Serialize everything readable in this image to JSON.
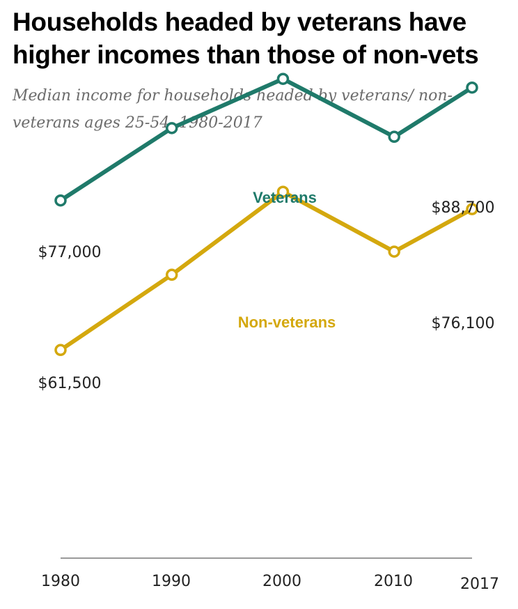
{
  "title": "Households headed by veterans have higher incomes than those of non-vets",
  "subtitle": "Median income for households headed by veterans/ non-veterans ages 25-54, 1980-2017",
  "chart_data": {
    "type": "line",
    "title": "Households headed by veterans have higher incomes than those of non-vets",
    "subtitle": "Median income for households headed by veterans/ non-veterans ages 25-54, 1980-2017",
    "x": [
      1980,
      1990,
      2000,
      2010,
      2017
    ],
    "tick_labels": [
      "1980",
      "1990",
      "2000",
      "2010",
      "2017"
    ],
    "series": [
      {
        "name": "Veterans",
        "color": "#1f7a6a",
        "values": [
          77000,
          84500,
          89600,
          83600,
          88700
        ],
        "labels": [
          {
            "index": 0,
            "text": "$77,000"
          },
          {
            "index": 4,
            "text": "$88,700"
          }
        ]
      },
      {
        "name": "Non-veterans",
        "color": "#d4a80e",
        "values": [
          61500,
          69300,
          77900,
          71700,
          76100
        ],
        "labels": [
          {
            "index": 0,
            "text": "$61,500"
          },
          {
            "index": 4,
            "text": "$76,100"
          }
        ]
      }
    ],
    "ylim": [
      40000,
      92000
    ],
    "grid": false,
    "legend": "inline labels"
  }
}
